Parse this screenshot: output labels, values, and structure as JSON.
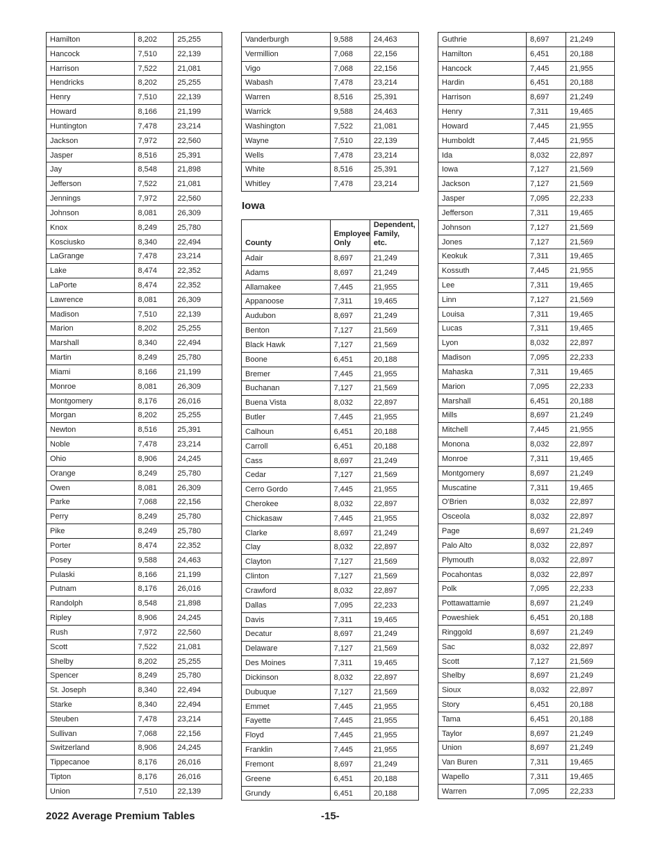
{
  "tables": {
    "t1": [
      [
        "Hamilton",
        "8,202",
        "25,255"
      ],
      [
        "Hancock",
        "7,510",
        "22,139"
      ],
      [
        "Harrison",
        "7,522",
        "21,081"
      ],
      [
        "Hendricks",
        "8,202",
        "25,255"
      ],
      [
        "Henry",
        "7,510",
        "22,139"
      ],
      [
        "Howard",
        "8,166",
        "21,199"
      ],
      [
        "Huntington",
        "7,478",
        "23,214"
      ],
      [
        "Jackson",
        "7,972",
        "22,560"
      ],
      [
        "Jasper",
        "8,516",
        "25,391"
      ],
      [
        "Jay",
        "8,548",
        "21,898"
      ],
      [
        "Jefferson",
        "7,522",
        "21,081"
      ],
      [
        "Jennings",
        "7,972",
        "22,560"
      ],
      [
        "Johnson",
        "8,081",
        "26,309"
      ],
      [
        "Knox",
        "8,249",
        "25,780"
      ],
      [
        "Kosciusko",
        "8,340",
        "22,494"
      ],
      [
        "LaGrange",
        "7,478",
        "23,214"
      ],
      [
        "Lake",
        "8,474",
        "22,352"
      ],
      [
        "LaPorte",
        "8,474",
        "22,352"
      ],
      [
        "Lawrence",
        "8,081",
        "26,309"
      ],
      [
        "Madison",
        "7,510",
        "22,139"
      ],
      [
        "Marion",
        "8,202",
        "25,255"
      ],
      [
        "Marshall",
        "8,340",
        "22,494"
      ],
      [
        "Martin",
        "8,249",
        "25,780"
      ],
      [
        "Miami",
        "8,166",
        "21,199"
      ],
      [
        "Monroe",
        "8,081",
        "26,309"
      ],
      [
        "Montgomery",
        "8,176",
        "26,016"
      ],
      [
        "Morgan",
        "8,202",
        "25,255"
      ],
      [
        "Newton",
        "8,516",
        "25,391"
      ],
      [
        "Noble",
        "7,478",
        "23,214"
      ],
      [
        "Ohio",
        "8,906",
        "24,245"
      ],
      [
        "Orange",
        "8,249",
        "25,780"
      ],
      [
        "Owen",
        "8,081",
        "26,309"
      ],
      [
        "Parke",
        "7,068",
        "22,156"
      ],
      [
        "Perry",
        "8,249",
        "25,780"
      ],
      [
        "Pike",
        "8,249",
        "25,780"
      ],
      [
        "Porter",
        "8,474",
        "22,352"
      ],
      [
        "Posey",
        "9,588",
        "24,463"
      ],
      [
        "Pulaski",
        "8,166",
        "21,199"
      ],
      [
        "Putnam",
        "8,176",
        "26,016"
      ],
      [
        "Randolph",
        "8,548",
        "21,898"
      ],
      [
        "Ripley",
        "8,906",
        "24,245"
      ],
      [
        "Rush",
        "7,972",
        "22,560"
      ],
      [
        "Scott",
        "7,522",
        "21,081"
      ],
      [
        "Shelby",
        "8,202",
        "25,255"
      ],
      [
        "Spencer",
        "8,249",
        "25,780"
      ],
      [
        "St. Joseph",
        "8,340",
        "22,494"
      ],
      [
        "Starke",
        "8,340",
        "22,494"
      ],
      [
        "Steuben",
        "7,478",
        "23,214"
      ],
      [
        "Sullivan",
        "7,068",
        "22,156"
      ],
      [
        "Switzerland",
        "8,906",
        "24,245"
      ],
      [
        "Tippecanoe",
        "8,176",
        "26,016"
      ],
      [
        "Tipton",
        "8,176",
        "26,016"
      ],
      [
        "Union",
        "7,510",
        "22,139"
      ]
    ],
    "t2": [
      [
        "Vanderburgh",
        "9,588",
        "24,463"
      ],
      [
        "Vermillion",
        "7,068",
        "22,156"
      ],
      [
        "Vigo",
        "7,068",
        "22,156"
      ],
      [
        "Wabash",
        "7,478",
        "23,214"
      ],
      [
        "Warren",
        "8,516",
        "25,391"
      ],
      [
        "Warrick",
        "9,588",
        "24,463"
      ],
      [
        "Washington",
        "7,522",
        "21,081"
      ],
      [
        "Wayne",
        "7,510",
        "22,139"
      ],
      [
        "Wells",
        "7,478",
        "23,214"
      ],
      [
        "White",
        "8,516",
        "25,391"
      ],
      [
        "Whitley",
        "7,478",
        "23,214"
      ]
    ],
    "t3": [
      [
        "Adair",
        "8,697",
        "21,249"
      ],
      [
        "Adams",
        "8,697",
        "21,249"
      ],
      [
        "Allamakee",
        "7,445",
        "21,955"
      ],
      [
        "Appanoose",
        "7,311",
        "19,465"
      ],
      [
        "Audubon",
        "8,697",
        "21,249"
      ],
      [
        "Benton",
        "7,127",
        "21,569"
      ],
      [
        "Black Hawk",
        "7,127",
        "21,569"
      ],
      [
        "Boone",
        "6,451",
        "20,188"
      ],
      [
        "Bremer",
        "7,445",
        "21,955"
      ],
      [
        "Buchanan",
        "7,127",
        "21,569"
      ],
      [
        "Buena Vista",
        "8,032",
        "22,897"
      ],
      [
        "Butler",
        "7,445",
        "21,955"
      ],
      [
        "Calhoun",
        "6,451",
        "20,188"
      ],
      [
        "Carroll",
        "6,451",
        "20,188"
      ],
      [
        "Cass",
        "8,697",
        "21,249"
      ],
      [
        "Cedar",
        "7,127",
        "21,569"
      ],
      [
        "Cerro Gordo",
        "7,445",
        "21,955"
      ],
      [
        "Cherokee",
        "8,032",
        "22,897"
      ],
      [
        "Chickasaw",
        "7,445",
        "21,955"
      ],
      [
        "Clarke",
        "8,697",
        "21,249"
      ],
      [
        "Clay",
        "8,032",
        "22,897"
      ],
      [
        "Clayton",
        "7,127",
        "21,569"
      ],
      [
        "Clinton",
        "7,127",
        "21,569"
      ],
      [
        "Crawford",
        "8,032",
        "22,897"
      ],
      [
        "Dallas",
        "7,095",
        "22,233"
      ],
      [
        "Davis",
        "7,311",
        "19,465"
      ],
      [
        "Decatur",
        "8,697",
        "21,249"
      ],
      [
        "Delaware",
        "7,127",
        "21,569"
      ],
      [
        "Des Moines",
        "7,311",
        "19,465"
      ],
      [
        "Dickinson",
        "8,032",
        "22,897"
      ],
      [
        "Dubuque",
        "7,127",
        "21,569"
      ],
      [
        "Emmet",
        "7,445",
        "21,955"
      ],
      [
        "Fayette",
        "7,445",
        "21,955"
      ],
      [
        "Floyd",
        "7,445",
        "21,955"
      ],
      [
        "Franklin",
        "7,445",
        "21,955"
      ],
      [
        "Fremont",
        "8,697",
        "21,249"
      ],
      [
        "Greene",
        "6,451",
        "20,188"
      ],
      [
        "Grundy",
        "6,451",
        "20,188"
      ]
    ],
    "t4": [
      [
        "Guthrie",
        "8,697",
        "21,249"
      ],
      [
        "Hamilton",
        "6,451",
        "20,188"
      ],
      [
        "Hancock",
        "7,445",
        "21,955"
      ],
      [
        "Hardin",
        "6,451",
        "20,188"
      ],
      [
        "Harrison",
        "8,697",
        "21,249"
      ],
      [
        "Henry",
        "7,311",
        "19,465"
      ],
      [
        "Howard",
        "7,445",
        "21,955"
      ],
      [
        "Humboldt",
        "7,445",
        "21,955"
      ],
      [
        "Ida",
        "8,032",
        "22,897"
      ],
      [
        "Iowa",
        "7,127",
        "21,569"
      ],
      [
        "Jackson",
        "7,127",
        "21,569"
      ],
      [
        "Jasper",
        "7,095",
        "22,233"
      ],
      [
        "Jefferson",
        "7,311",
        "19,465"
      ],
      [
        "Johnson",
        "7,127",
        "21,569"
      ],
      [
        "Jones",
        "7,127",
        "21,569"
      ],
      [
        "Keokuk",
        "7,311",
        "19,465"
      ],
      [
        "Kossuth",
        "7,445",
        "21,955"
      ],
      [
        "Lee",
        "7,311",
        "19,465"
      ],
      [
        "Linn",
        "7,127",
        "21,569"
      ],
      [
        "Louisa",
        "7,311",
        "19,465"
      ],
      [
        "Lucas",
        "7,311",
        "19,465"
      ],
      [
        "Lyon",
        "8,032",
        "22,897"
      ],
      [
        "Madison",
        "7,095",
        "22,233"
      ],
      [
        "Mahaska",
        "7,311",
        "19,465"
      ],
      [
        "Marion",
        "7,095",
        "22,233"
      ],
      [
        "Marshall",
        "6,451",
        "20,188"
      ],
      [
        "Mills",
        "8,697",
        "21,249"
      ],
      [
        "Mitchell",
        "7,445",
        "21,955"
      ],
      [
        "Monona",
        "8,032",
        "22,897"
      ],
      [
        "Monroe",
        "7,311",
        "19,465"
      ],
      [
        "Montgomery",
        "8,697",
        "21,249"
      ],
      [
        "Muscatine",
        "7,311",
        "19,465"
      ],
      [
        "O'Brien",
        "8,032",
        "22,897"
      ],
      [
        "Osceola",
        "8,032",
        "22,897"
      ],
      [
        "Page",
        "8,697",
        "21,249"
      ],
      [
        "Palo Alto",
        "8,032",
        "22,897"
      ],
      [
        "Plymouth",
        "8,032",
        "22,897"
      ],
      [
        "Pocahontas",
        "8,032",
        "22,897"
      ],
      [
        "Polk",
        "7,095",
        "22,233"
      ],
      [
        "Pottawattamie",
        "8,697",
        "21,249"
      ],
      [
        "Poweshiek",
        "6,451",
        "20,188"
      ],
      [
        "Ringgold",
        "8,697",
        "21,249"
      ],
      [
        "Sac",
        "8,032",
        "22,897"
      ],
      [
        "Scott",
        "7,127",
        "21,569"
      ],
      [
        "Shelby",
        "8,697",
        "21,249"
      ],
      [
        "Sioux",
        "8,032",
        "22,897"
      ],
      [
        "Story",
        "6,451",
        "20,188"
      ],
      [
        "Tama",
        "6,451",
        "20,188"
      ],
      [
        "Taylor",
        "8,697",
        "21,249"
      ],
      [
        "Union",
        "8,697",
        "21,249"
      ],
      [
        "Van Buren",
        "7,311",
        "19,465"
      ],
      [
        "Wapello",
        "7,311",
        "19,465"
      ],
      [
        "Warren",
        "7,095",
        "22,233"
      ]
    ]
  },
  "iowa": {
    "title": "Iowa",
    "headers": [
      "County",
      "Employee-\nOnly",
      "Dependent,\nFamily, etc."
    ]
  },
  "footer": {
    "title": "2022 Average Premium Tables",
    "page": "-15-"
  }
}
